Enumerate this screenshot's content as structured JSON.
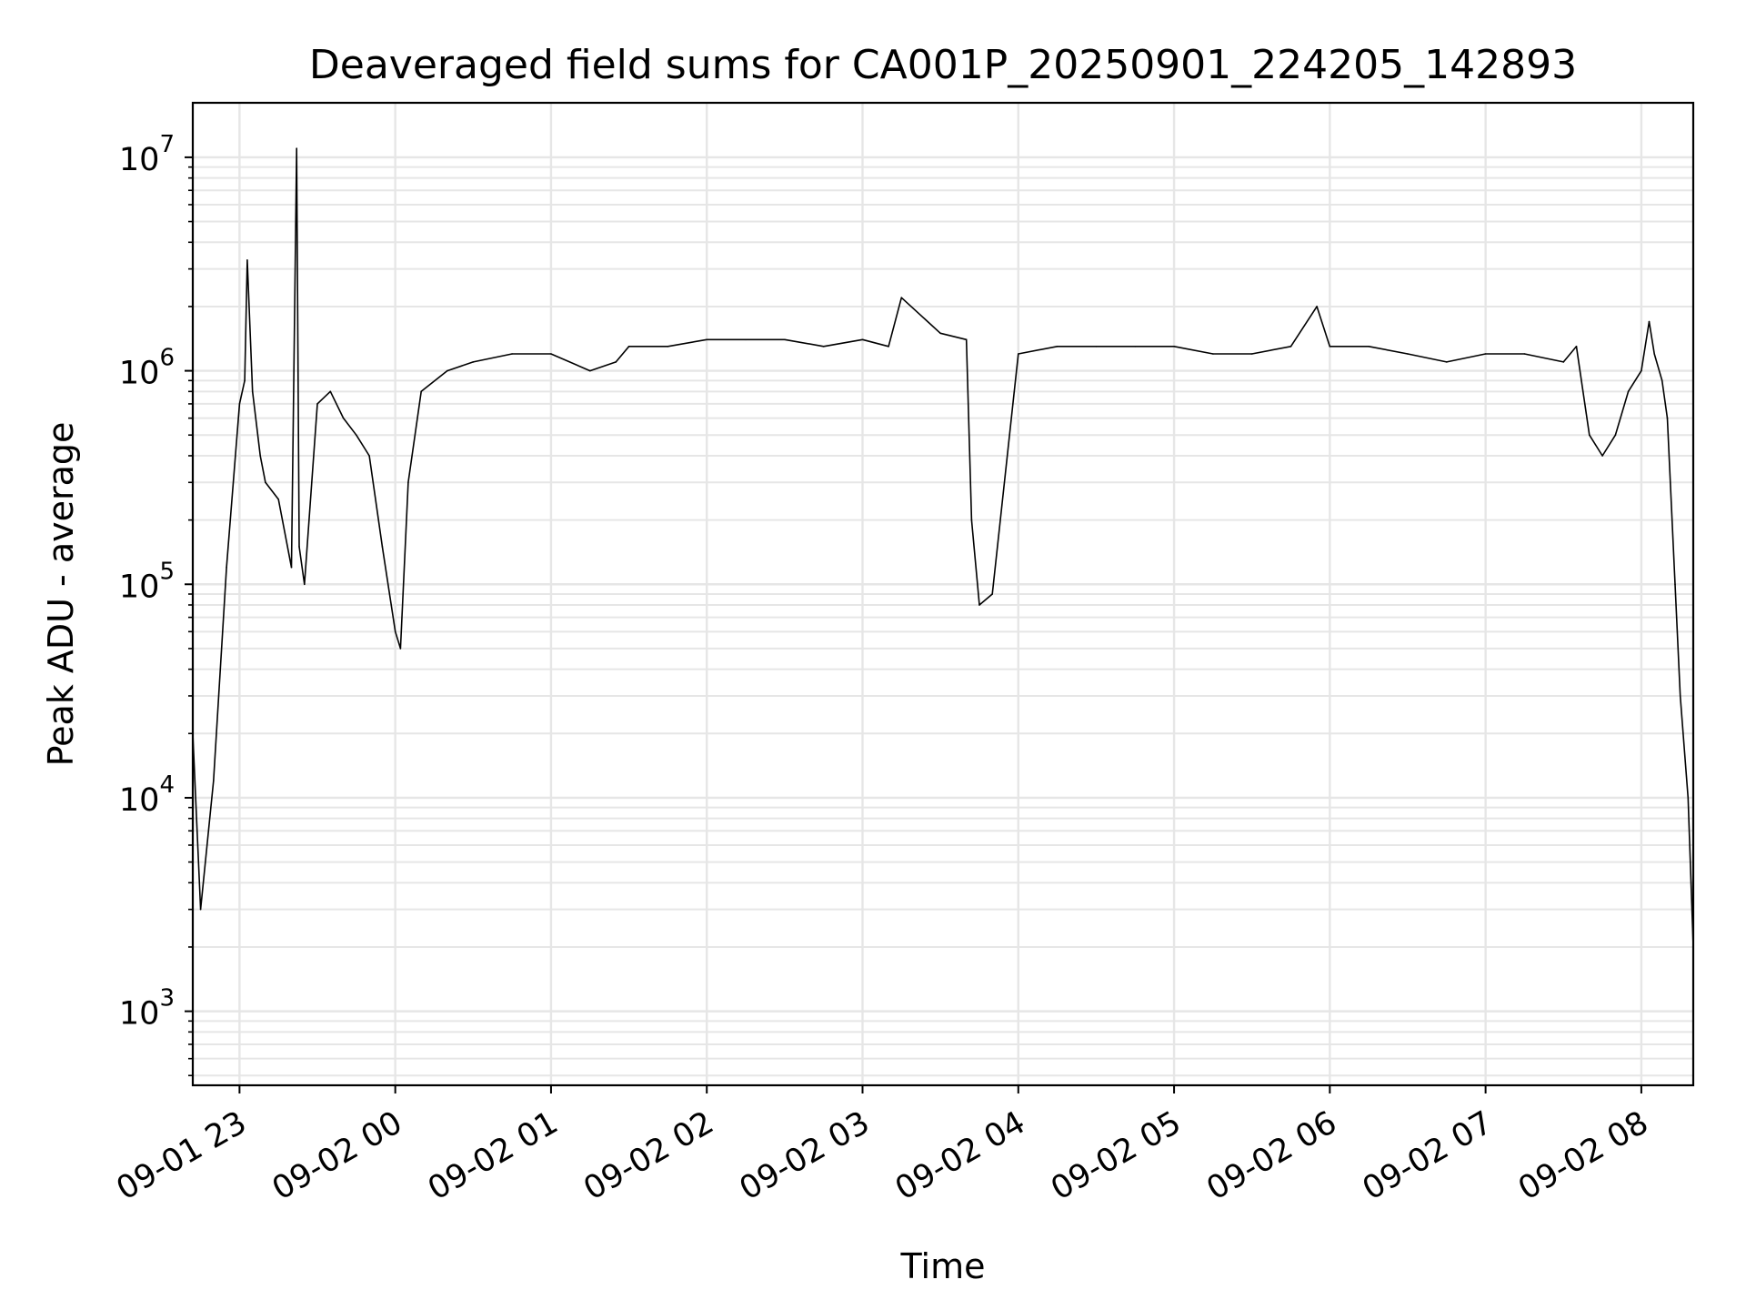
{
  "chart_data": {
    "type": "line",
    "title": "Deaveraged field sums for CA001P_20250901_224205_142893",
    "xlabel": "Time",
    "ylabel": "Peak ADU - average",
    "yscale": "log",
    "ylim": [
      450,
      18000000
    ],
    "xlim": [
      "2025-09-01 22:42",
      "2025-09-02 08:20"
    ],
    "grid": true,
    "legend": "none",
    "line_color": "#000000",
    "x_ticks": [
      {
        "at": "2025-09-01 23:00",
        "label": "09-01 23"
      },
      {
        "at": "2025-09-02 00:00",
        "label": "09-02 00"
      },
      {
        "at": "2025-09-02 01:00",
        "label": "09-02 01"
      },
      {
        "at": "2025-09-02 02:00",
        "label": "09-02 02"
      },
      {
        "at": "2025-09-02 03:00",
        "label": "09-02 03"
      },
      {
        "at": "2025-09-02 04:00",
        "label": "09-02 04"
      },
      {
        "at": "2025-09-02 05:00",
        "label": "09-02 05"
      },
      {
        "at": "2025-09-02 06:00",
        "label": "09-02 06"
      },
      {
        "at": "2025-09-02 07:00",
        "label": "09-02 07"
      },
      {
        "at": "2025-09-02 08:00",
        "label": "09-02 08"
      }
    ],
    "y_ticks": [
      {
        "value": 1000,
        "base": "10",
        "exp": "3"
      },
      {
        "value": 10000,
        "base": "10",
        "exp": "4"
      },
      {
        "value": 100000,
        "base": "10",
        "exp": "5"
      },
      {
        "value": 1000000,
        "base": "10",
        "exp": "6"
      },
      {
        "value": 10000000,
        "base": "10",
        "exp": "7"
      }
    ],
    "series": [
      {
        "x": [
          "2025-09-01 22:42",
          "2025-09-01 22:45",
          "2025-09-01 22:50",
          "2025-09-01 22:55",
          "2025-09-01 23:00",
          "2025-09-01 23:02",
          "2025-09-01 23:03",
          "2025-09-01 23:05",
          "2025-09-01 23:08",
          "2025-09-01 23:10",
          "2025-09-01 23:15",
          "2025-09-01 23:20",
          "2025-09-01 23:22",
          "2025-09-01 23:23",
          "2025-09-01 23:25",
          "2025-09-01 23:30",
          "2025-09-01 23:35",
          "2025-09-01 23:40",
          "2025-09-01 23:45",
          "2025-09-01 23:50",
          "2025-09-01 23:55",
          "2025-09-02 00:00",
          "2025-09-02 00:02",
          "2025-09-02 00:05",
          "2025-09-02 00:10",
          "2025-09-02 00:20",
          "2025-09-02 00:30",
          "2025-09-02 00:45",
          "2025-09-02 01:00",
          "2025-09-02 01:15",
          "2025-09-02 01:25",
          "2025-09-02 01:30",
          "2025-09-02 01:45",
          "2025-09-02 02:00",
          "2025-09-02 02:15",
          "2025-09-02 02:30",
          "2025-09-02 02:45",
          "2025-09-02 03:00",
          "2025-09-02 03:10",
          "2025-09-02 03:15",
          "2025-09-02 03:30",
          "2025-09-02 03:40",
          "2025-09-02 03:42",
          "2025-09-02 03:45",
          "2025-09-02 03:50",
          "2025-09-02 04:00",
          "2025-09-02 04:15",
          "2025-09-02 04:30",
          "2025-09-02 04:45",
          "2025-09-02 05:00",
          "2025-09-02 05:15",
          "2025-09-02 05:30",
          "2025-09-02 05:45",
          "2025-09-02 05:55",
          "2025-09-02 06:00",
          "2025-09-02 06:15",
          "2025-09-02 06:30",
          "2025-09-02 06:45",
          "2025-09-02 07:00",
          "2025-09-02 07:15",
          "2025-09-02 07:30",
          "2025-09-02 07:35",
          "2025-09-02 07:40",
          "2025-09-02 07:45",
          "2025-09-02 07:50",
          "2025-09-02 07:55",
          "2025-09-02 08:00",
          "2025-09-02 08:03",
          "2025-09-02 08:05",
          "2025-09-02 08:08",
          "2025-09-02 08:10",
          "2025-09-02 08:13",
          "2025-09-02 08:15",
          "2025-09-02 08:18",
          "2025-09-02 08:20"
        ],
        "y": [
          20000,
          3000,
          12000,
          120000,
          700000,
          900000,
          3300000,
          800000,
          400000,
          300000,
          250000,
          120000,
          11000000,
          150000,
          100000,
          700000,
          800000,
          600000,
          500000,
          400000,
          150000,
          60000,
          50000,
          300000,
          800000,
          1000000,
          1100000,
          1200000,
          1200000,
          1000000,
          1100000,
          1300000,
          1300000,
          1400000,
          1400000,
          1400000,
          1300000,
          1400000,
          1300000,
          2200000,
          1500000,
          1400000,
          200000,
          80000,
          90000,
          1200000,
          1300000,
          1300000,
          1300000,
          1300000,
          1200000,
          1200000,
          1300000,
          2000000,
          1300000,
          1300000,
          1200000,
          1100000,
          1200000,
          1200000,
          1100000,
          1300000,
          500000,
          400000,
          500000,
          800000,
          1000000,
          1700000,
          1200000,
          900000,
          600000,
          100000,
          30000,
          10000,
          2000
        ]
      }
    ]
  }
}
